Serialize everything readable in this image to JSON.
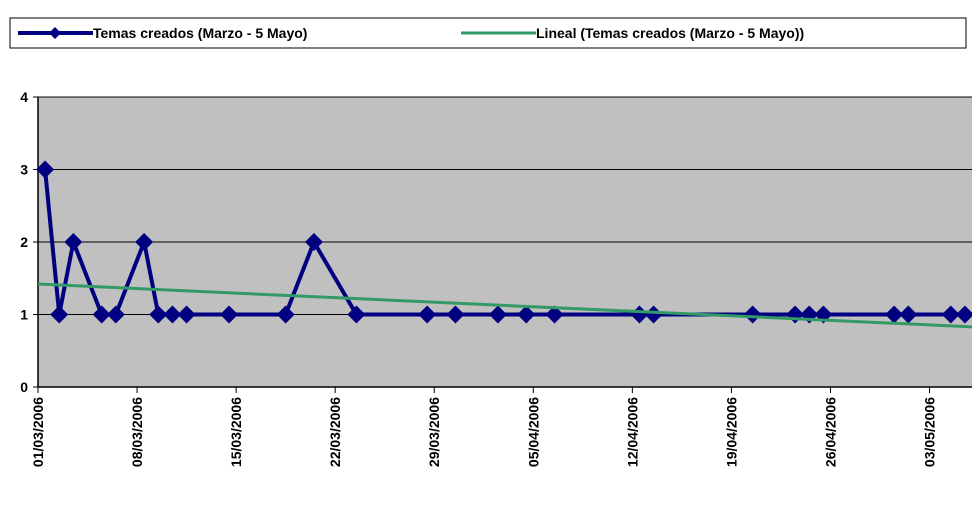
{
  "chart_data": {
    "type": "line",
    "series": [
      {
        "name": "Temas creados (Marzo - 5 Mayo)",
        "color": "#000080",
        "x": [
          "01/03/2006",
          "02/03/2006",
          "03/03/2006",
          "05/03/2006",
          "06/03/2006",
          "08/03/2006",
          "09/03/2006",
          "10/03/2006",
          "11/03/2006",
          "14/03/2006",
          "18/03/2006",
          "20/03/2006",
          "23/03/2006",
          "28/03/2006",
          "30/03/2006",
          "02/04/2006",
          "04/04/2006",
          "06/04/2006",
          "12/04/2006",
          "13/04/2006",
          "20/04/2006",
          "23/04/2006",
          "24/04/2006",
          "25/04/2006",
          "30/04/2006",
          "01/05/2006",
          "04/05/2006",
          "05/05/2006"
        ],
        "values": [
          3,
          1,
          2,
          1,
          1,
          2,
          1,
          1,
          1,
          1,
          1,
          2,
          1,
          1,
          1,
          1,
          1,
          1,
          1,
          1,
          1,
          1,
          1,
          1,
          1,
          1,
          1,
          1
        ]
      },
      {
        "name": "Lineal (Temas creados (Marzo - 5 Mayo))",
        "color": "#339966",
        "x": [
          "01/03/2006",
          "06/05/2006"
        ],
        "values": [
          1.42,
          0.83
        ]
      }
    ],
    "xlim": [
      "01/03/2006",
      "06/05/2006"
    ],
    "xticks": [
      "01/03/2006",
      "08/03/2006",
      "15/03/2006",
      "22/03/2006",
      "29/03/2006",
      "05/04/2006",
      "12/04/2006",
      "19/04/2006",
      "26/04/2006",
      "03/05/2006"
    ],
    "ylim": [
      0,
      4
    ],
    "yticks": [
      0,
      1,
      2,
      3,
      4
    ],
    "grid": true,
    "legend": "top"
  }
}
